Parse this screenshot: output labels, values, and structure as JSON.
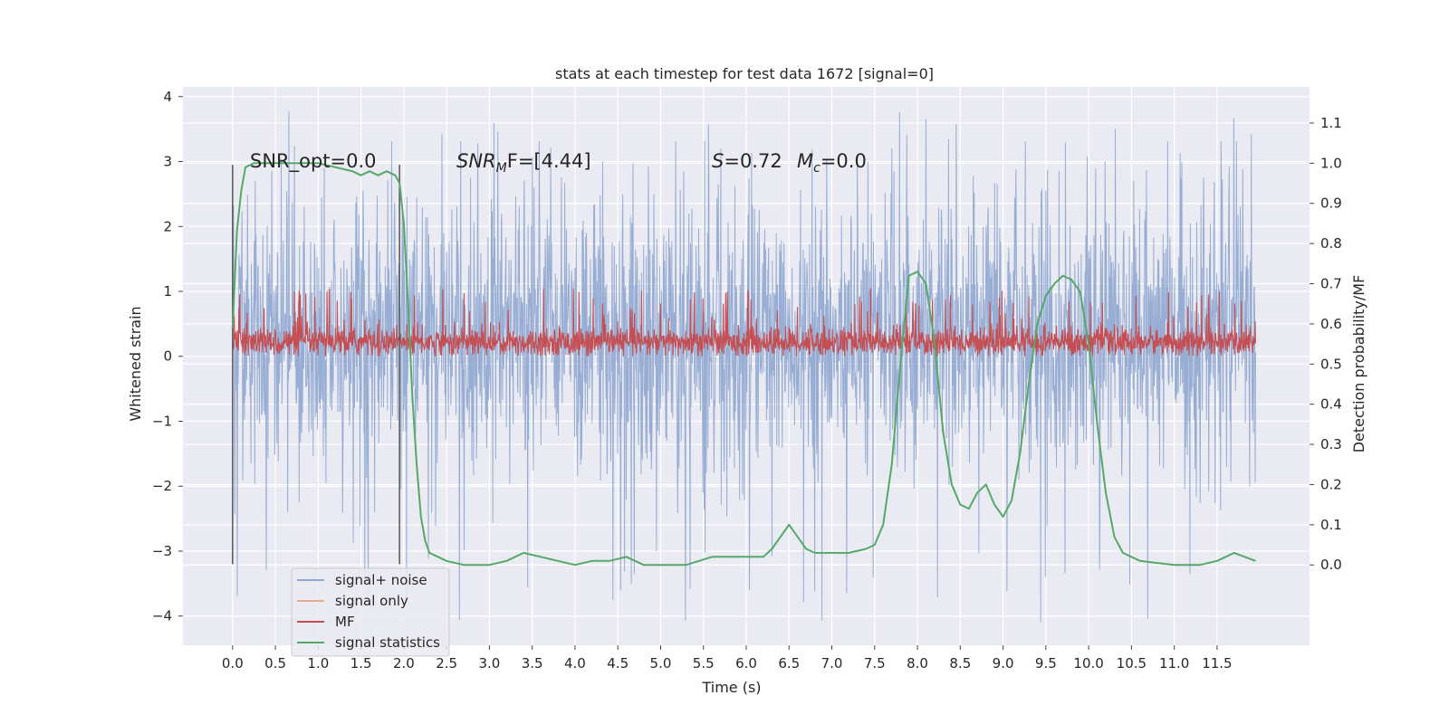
{
  "chart_data": {
    "type": "line",
    "title": "stats at each timestep for test data 1672 [signal=0]",
    "xlabel": "Time (s)",
    "ylabel": "Whitened strain",
    "ylabel_right": "Detection probability/MF",
    "xlim": [
      -0.58,
      12.58
    ],
    "ylim": [
      -4.45,
      4.15
    ],
    "ylim_right": [
      -0.2,
      1.19
    ],
    "x_ticks": [
      0.0,
      0.5,
      1.0,
      1.5,
      2.0,
      2.5,
      3.0,
      3.5,
      4.0,
      4.5,
      5.0,
      5.5,
      6.0,
      6.5,
      7.0,
      7.5,
      8.0,
      8.5,
      9.0,
      9.5,
      10.0,
      10.5,
      11.0,
      11.5
    ],
    "x_tick_labels": [
      "0.0",
      "0.5",
      "1.0",
      "1.5",
      "2.0",
      "2.5",
      "3.0",
      "3.5",
      "4.0",
      "4.5",
      "5.0",
      "5.5",
      "6.0",
      "6.5",
      "7.0",
      "7.5",
      "8.0",
      "8.5",
      "9.0",
      "9.5",
      "10.0",
      "10.5",
      "11.0",
      "11.5"
    ],
    "y_ticks": [
      4,
      3,
      2,
      1,
      0,
      -1,
      -2,
      -3,
      -4
    ],
    "y_tick_labels": [
      "4",
      "3",
      "2",
      "1",
      "0",
      "−1",
      "−2",
      "−3",
      "−4"
    ],
    "y_ticks_right": [
      1.1,
      1.0,
      0.9,
      0.8,
      0.7,
      0.6,
      0.5,
      0.4,
      0.3,
      0.2,
      0.1,
      0.0
    ],
    "y_tick_labels_right": [
      "1.1",
      "1.0",
      "0.9",
      "0.8",
      "0.7",
      "0.6",
      "0.5",
      "0.4",
      "0.3",
      "0.2",
      "0.1",
      "0.0"
    ],
    "grid": true,
    "legend_position": "lower-left",
    "vertical_markers": [
      {
        "x": 0.0,
        "y_range": [
          -3.2,
          2.95
        ]
      },
      {
        "x": 1.95,
        "y_range": [
          -3.2,
          2.95
        ]
      }
    ],
    "annotations": {
      "snr_opt": "SNR_opt=0.0",
      "snr_mf_main": "SNR",
      "snr_mf_sub": "M",
      "snr_mf_rest": "F=[4.44]",
      "s_var": "S",
      "s_value": "=0.72",
      "mc_var": "M",
      "mc_sub": "c",
      "mc_value": "=0.0"
    },
    "series": [
      {
        "name": "signal+ noise",
        "color": "#8fa6cf",
        "axis": "left",
        "time_range": [
          0.0,
          11.95
        ],
        "envelope_typical": [
          -1.5,
          2.2
        ],
        "envelope_peak": [
          -4.1,
          3.8
        ],
        "note_values": "dense noise trace"
      },
      {
        "name": "signal only",
        "color": "#e8a88a",
        "axis": "left",
        "values": []
      },
      {
        "name": "MF",
        "color": "#c44e52",
        "axis": "left",
        "time_range": [
          0.0,
          11.95
        ],
        "envelope_typical": [
          0.0,
          0.45
        ],
        "envelope_peak": [
          0.0,
          1.05
        ]
      },
      {
        "name": "signal statistics",
        "color": "#55a868",
        "axis": "right",
        "x": [
          0.0,
          0.05,
          0.1,
          0.15,
          0.25,
          0.5,
          0.8,
          1.0,
          1.2,
          1.4,
          1.5,
          1.6,
          1.7,
          1.8,
          1.9,
          1.95,
          2.0,
          2.05,
          2.1,
          2.15,
          2.2,
          2.25,
          2.3,
          2.4,
          2.5,
          2.7,
          3.0,
          3.2,
          3.4,
          3.6,
          3.8,
          4.0,
          4.2,
          4.4,
          4.6,
          4.8,
          5.0,
          5.3,
          5.6,
          6.0,
          6.2,
          6.3,
          6.4,
          6.5,
          6.6,
          6.7,
          6.8,
          7.0,
          7.2,
          7.4,
          7.5,
          7.6,
          7.7,
          7.8,
          7.9,
          8.0,
          8.1,
          8.2,
          8.3,
          8.4,
          8.5,
          8.6,
          8.7,
          8.8,
          8.9,
          9.0,
          9.1,
          9.2,
          9.3,
          9.4,
          9.5,
          9.6,
          9.7,
          9.8,
          9.9,
          10.0,
          10.1,
          10.2,
          10.3,
          10.4,
          10.6,
          11.0,
          11.3,
          11.5,
          11.7,
          11.95
        ],
        "values": [
          0.59,
          0.83,
          0.93,
          0.99,
          1.0,
          1.0,
          1.0,
          1.0,
          0.99,
          0.98,
          0.97,
          0.98,
          0.97,
          0.98,
          0.97,
          0.95,
          0.85,
          0.65,
          0.42,
          0.25,
          0.12,
          0.06,
          0.03,
          0.02,
          0.01,
          0.0,
          0.0,
          0.01,
          0.03,
          0.02,
          0.01,
          0.0,
          0.01,
          0.01,
          0.02,
          0.0,
          0.0,
          0.0,
          0.02,
          0.02,
          0.02,
          0.04,
          0.07,
          0.1,
          0.07,
          0.04,
          0.03,
          0.03,
          0.03,
          0.04,
          0.05,
          0.1,
          0.25,
          0.5,
          0.72,
          0.73,
          0.7,
          0.55,
          0.33,
          0.2,
          0.15,
          0.14,
          0.18,
          0.2,
          0.15,
          0.12,
          0.16,
          0.28,
          0.45,
          0.6,
          0.67,
          0.7,
          0.72,
          0.71,
          0.68,
          0.55,
          0.35,
          0.18,
          0.07,
          0.03,
          0.01,
          0.0,
          0.0,
          0.01,
          0.03,
          0.01
        ]
      }
    ]
  }
}
